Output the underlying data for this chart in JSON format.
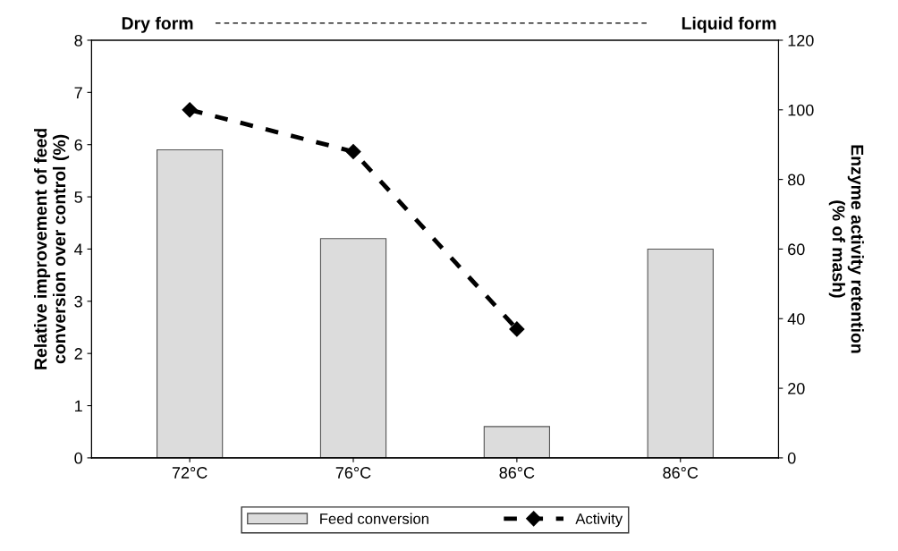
{
  "chart_data": {
    "type": "bar",
    "categories": [
      "72°C",
      "76°C",
      "86°C",
      "86°C"
    ],
    "ylabel": "Relative improvement of feed\nconversion over control (%)",
    "y2label": "Enzyme activity retention\n(% of mash)",
    "ylim": [
      0,
      8
    ],
    "yticks": [
      0,
      1,
      2,
      3,
      4,
      5,
      6,
      7,
      8
    ],
    "y2lim": [
      0,
      120
    ],
    "y2ticks": [
      0,
      20,
      40,
      60,
      80,
      100,
      120
    ],
    "series": [
      {
        "name": "Feed conversion",
        "color": "#dcdcdc",
        "values": [
          5.9,
          4.2,
          0.6,
          4.0
        ]
      },
      {
        "name": "Activity",
        "type": "line",
        "axis": "y2",
        "color": "#000000",
        "marker": "diamond",
        "line_style": "dashed",
        "values": [
          100,
          88,
          37,
          null
        ]
      }
    ],
    "annotations": [
      "Dry form",
      "Liquid form"
    ],
    "legend": "bottom",
    "grid": false
  }
}
